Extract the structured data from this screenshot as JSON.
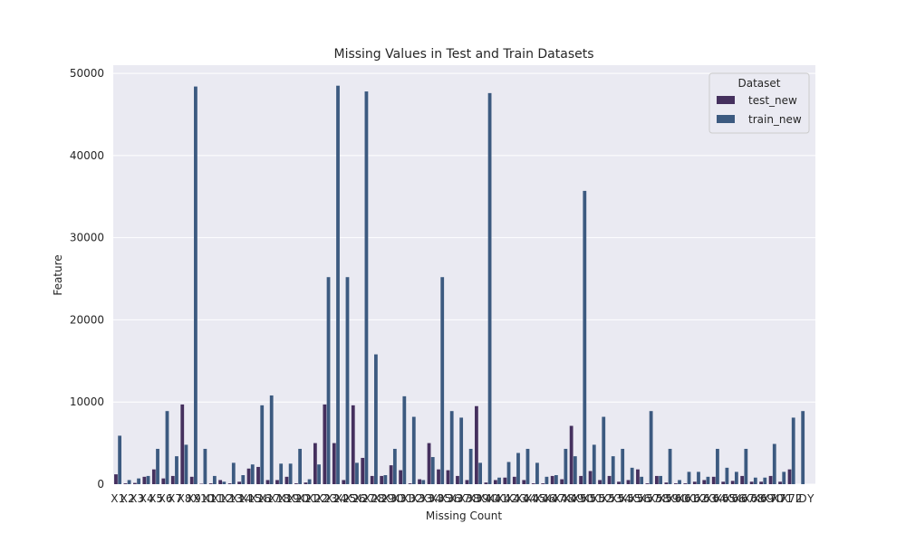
{
  "chart_data": {
    "type": "bar",
    "title": "Missing Values in Test and Train Datasets",
    "xlabel": "Missing Count",
    "ylabel": "Feature",
    "ylim": [
      0,
      51000
    ],
    "yticks": [
      0,
      10000,
      20000,
      30000,
      40000,
      50000
    ],
    "grid": true,
    "legend": {
      "title": "Dataset",
      "position": "top-right"
    },
    "categories": [
      "X1",
      "X2",
      "X3",
      "X4",
      "X5",
      "X6",
      "X7",
      "X8",
      "X9",
      "X10",
      "X11",
      "X12",
      "X13",
      "X14",
      "X15",
      "X16",
      "X17",
      "X18",
      "X19",
      "X20",
      "X21",
      "X22",
      "X23",
      "X24",
      "X25",
      "X26",
      "X27",
      "X28",
      "X29",
      "X30",
      "X31",
      "X32",
      "X33",
      "X34",
      "X35",
      "X36",
      "X37",
      "X38",
      "X39",
      "X40",
      "X41",
      "X42",
      "X43",
      "X44",
      "X45",
      "X46",
      "X47",
      "X48",
      "X49",
      "X50",
      "X51",
      "X52",
      "X53",
      "X54",
      "X55",
      "X56",
      "X57",
      "X58",
      "X59",
      "X60",
      "X61",
      "X62",
      "X63",
      "X64",
      "X65",
      "X66",
      "X67",
      "X68",
      "X69",
      "X70",
      "X71",
      "X72",
      "ID",
      "Y"
    ],
    "tick_labels": [
      "X1",
      "X2",
      "X3",
      "X4",
      "X5",
      "X6",
      "X7",
      "X8",
      "X9",
      "X10",
      "X11",
      "X12",
      "X13",
      "X14",
      "X15",
      "X16",
      "X17",
      "X18",
      "X19",
      "X20",
      "X21",
      "X22",
      "X23",
      "X24",
      "X25",
      "X26",
      "X27",
      "X28",
      "X29",
      "X30",
      "X31",
      "X32",
      "X33",
      "X34",
      "X35",
      "X36",
      "X37",
      "X38",
      "X39",
      "X40",
      "X41",
      "X42",
      "X43",
      "X44",
      "X45",
      "X46",
      "X47",
      "X48",
      "X49",
      "X50",
      "X51",
      "X52",
      "X53",
      "X54",
      "X55",
      "X56",
      "X57",
      "X58",
      "X59",
      "X60",
      "X61",
      "X62",
      "X63",
      "X64",
      "X65",
      "X66",
      "X67",
      "X68",
      "X69",
      "X70",
      "X71",
      "X72",
      "ID",
      "Y"
    ],
    "series": [
      {
        "name": "test_new",
        "color": "#45305e",
        "values": [
          1200,
          100,
          150,
          900,
          1800,
          700,
          1000,
          9700,
          900,
          50,
          100,
          500,
          100,
          300,
          1900,
          2100,
          500,
          500,
          900,
          100,
          200,
          5000,
          9700,
          5000,
          500,
          9600,
          3200,
          1000,
          1000,
          2300,
          1700,
          100,
          600,
          5000,
          1800,
          1700,
          1000,
          500,
          9500,
          200,
          500,
          800,
          900,
          500,
          100,
          100,
          1000,
          600,
          7100,
          1000,
          1600,
          500,
          1000,
          300,
          500,
          1800,
          100,
          1000,
          200,
          100,
          100,
          300,
          500,
          900,
          300,
          400,
          1000,
          300,
          300,
          1000,
          300,
          1800,
          0,
          0
        ]
      },
      {
        "name": "train_new",
        "color": "#3c5a80",
        "values": [
          5900,
          500,
          700,
          1000,
          4300,
          8900,
          3400,
          4800,
          48400,
          4300,
          1000,
          300,
          2600,
          1100,
          2400,
          9600,
          10800,
          2500,
          2500,
          4300,
          600,
          2400,
          25200,
          48500,
          25200,
          2600,
          47800,
          15800,
          1100,
          4300,
          10700,
          8200,
          500,
          3300,
          25200,
          8900,
          8100,
          4300,
          2600,
          47600,
          800,
          2700,
          3800,
          4300,
          2600,
          900,
          1100,
          4300,
          3400,
          35700,
          4800,
          8200,
          3400,
          4300,
          2000,
          900,
          8900,
          1000,
          4300,
          500,
          1500,
          1500,
          900,
          4300,
          2000,
          1500,
          4300,
          800,
          800,
          4900,
          1500,
          8100,
          8900,
          0
        ]
      }
    ]
  }
}
